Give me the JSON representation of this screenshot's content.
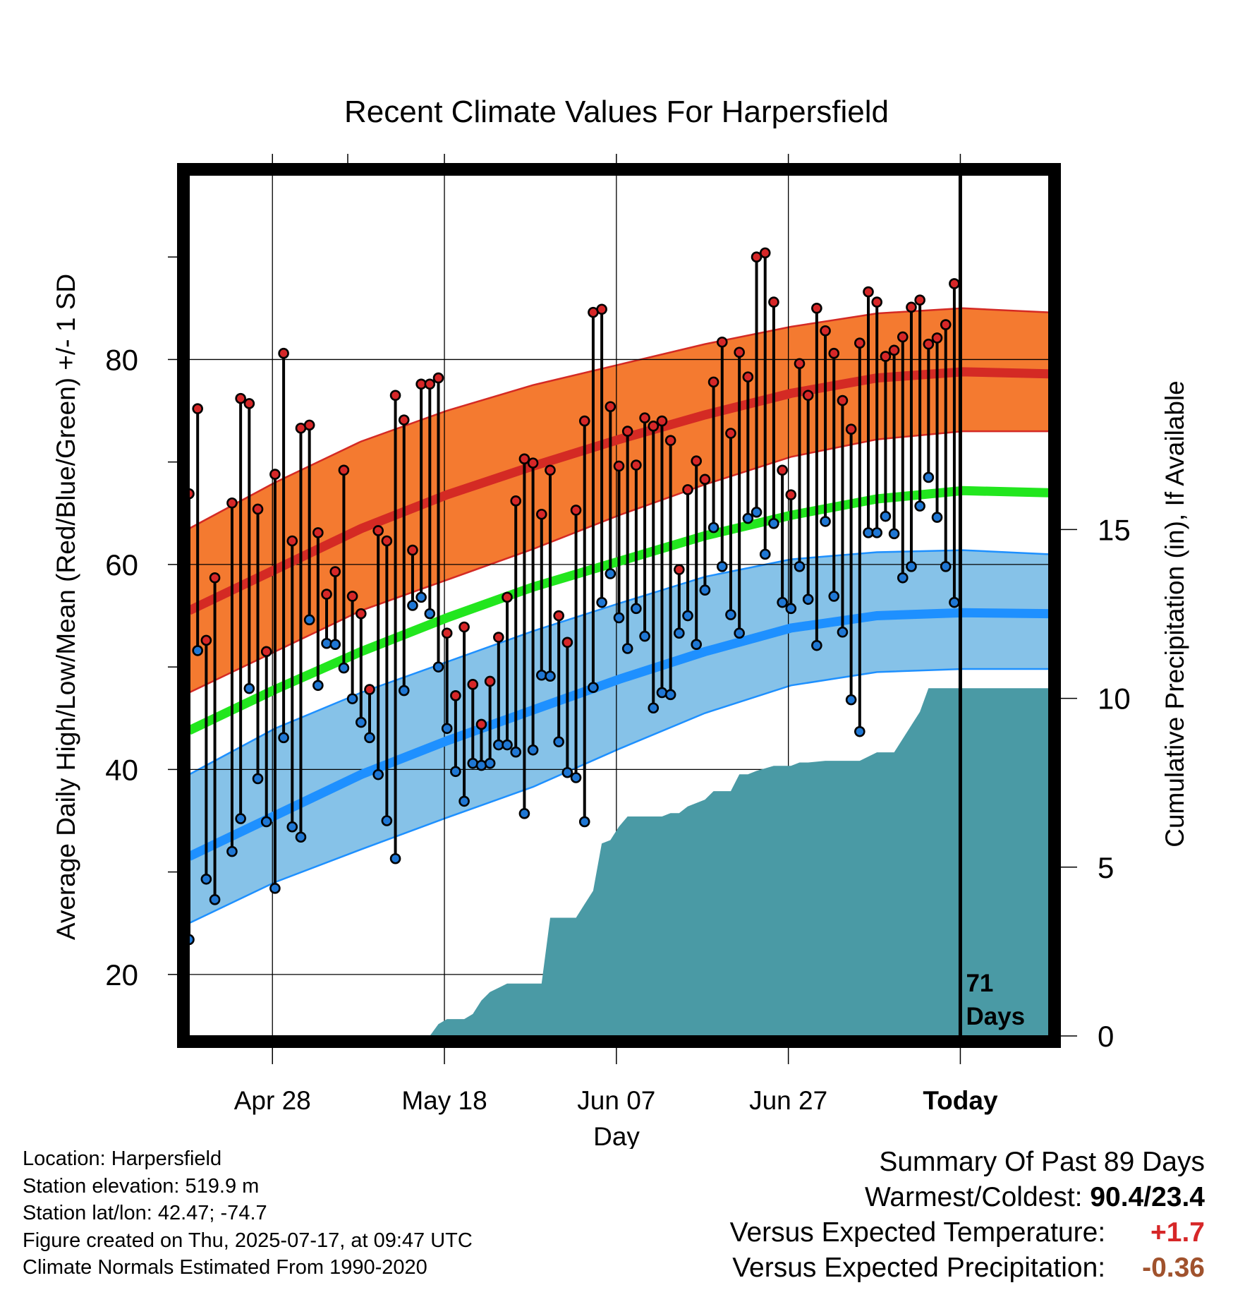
{
  "chart_data": {
    "type": "line",
    "title": "Recent Climate Values For Harpersfield",
    "xlabel": "Day",
    "ylabel": "Average Daily High/Low/Mean (Red/Blue/Green) +/- 1 SD",
    "y2label": "Cumulative Precipitation (in), If Available",
    "ylim": [
      14,
      98
    ],
    "y_ticks": [
      "20",
      "40",
      "60",
      "80"
    ],
    "y2lim": [
      0,
      25.5
    ],
    "y2_ticks": [
      "0",
      "5",
      "10",
      "15"
    ],
    "x_ticks": [
      "Apr 28",
      "May 18",
      "Jun 07",
      "Jun 27",
      "Today"
    ],
    "grid": true,
    "today_marker_label": "71 Days",
    "colors": {
      "high_band": "#f47a30",
      "high_line": "#d42a24",
      "low_band": "#86c2e8",
      "low_line": "#1e90ff",
      "mean_line": "#22e61e",
      "high_point": "#d62728",
      "low_point": "#1f77d4",
      "precip": "#4a9aa5"
    },
    "normals": {
      "x": [
        -90,
        -80,
        -70,
        -60,
        -50,
        -40,
        -30,
        -20,
        -10,
        0,
        10
      ],
      "high_mean": [
        55.5,
        59.5,
        63.5,
        66.8,
        69.6,
        72.2,
        74.6,
        76.7,
        78.2,
        78.8,
        78.6
      ],
      "high_sd_upper": [
        63.5,
        68.0,
        72.0,
        75.0,
        77.5,
        79.5,
        81.5,
        83.2,
        84.5,
        85.0,
        84.6
      ],
      "high_sd_lower": [
        47.5,
        51.5,
        55.5,
        58.5,
        61.5,
        64.8,
        67.8,
        70.5,
        72.2,
        73.0,
        73.0
      ],
      "mean": [
        43.8,
        47.8,
        51.5,
        54.8,
        57.8,
        60.3,
        62.8,
        64.8,
        66.4,
        67.2,
        67.0
      ],
      "low_mean": [
        31.5,
        35.5,
        39.5,
        42.8,
        45.8,
        48.8,
        51.5,
        53.8,
        55.0,
        55.3,
        55.2
      ],
      "low_sd_upper": [
        39.5,
        44.0,
        47.5,
        50.5,
        53.5,
        56.2,
        58.8,
        60.5,
        61.2,
        61.4,
        61.0
      ],
      "low_sd_lower": [
        25.0,
        29.0,
        32.2,
        35.3,
        38.3,
        42.0,
        45.5,
        48.2,
        49.5,
        49.8,
        49.8
      ]
    },
    "daily": {
      "x": [
        -90,
        -89,
        -88,
        -87,
        -86,
        -85,
        -84,
        -83,
        -82,
        -81,
        -80,
        -79,
        -78,
        -77,
        -76,
        -75,
        -74,
        -73,
        -72,
        -71,
        -70,
        -69,
        -68,
        -67,
        -66,
        -65,
        -64,
        -63,
        -62,
        -61,
        -60,
        -59,
        -58,
        -57,
        -56,
        -55,
        -54,
        -53,
        -52,
        -51,
        -50,
        -49,
        -48,
        -47,
        -46,
        -45,
        -44,
        -43,
        -42,
        -41,
        -40,
        -39,
        -38,
        -37,
        -36,
        -35,
        -34,
        -33,
        -32,
        -31,
        -30,
        -29,
        -28,
        -27,
        -26,
        -25,
        -24,
        -23,
        -22,
        -21,
        -20,
        -19,
        -18,
        -17,
        -16,
        -15,
        -14,
        -13,
        -12,
        -11,
        -10,
        -9,
        -8,
        -7,
        -6,
        -5,
        -4,
        -3,
        -2,
        -1
      ],
      "high": [
        66.9,
        75.2,
        52.6,
        58.7,
        null,
        66.0,
        76.2,
        75.7,
        65.4,
        51.5,
        68.8,
        80.6,
        62.3,
        73.3,
        73.6,
        63.1,
        57.1,
        59.3,
        69.2,
        56.9,
        55.2,
        47.8,
        63.3,
        62.3,
        76.5,
        74.1,
        61.4,
        77.6,
        77.6,
        78.2,
        53.3,
        47.2,
        53.9,
        48.3,
        44.4,
        48.6,
        52.9,
        56.8,
        66.2,
        70.3,
        69.9,
        64.9,
        69.2,
        55.0,
        52.4,
        65.3,
        74.0,
        84.6,
        84.9,
        75.4,
        69.6,
        73.0,
        69.7,
        74.3,
        73.5,
        74.0,
        72.1,
        59.5,
        67.3,
        70.1,
        68.3,
        77.8,
        81.7,
        72.8,
        80.7,
        78.3,
        90.0,
        90.4,
        85.6,
        69.2,
        66.8,
        79.6,
        76.5,
        85.0,
        82.8,
        80.6,
        76.0,
        73.2,
        81.6,
        86.6,
        85.6,
        80.3,
        80.9,
        82.2,
        85.1,
        85.8,
        81.5,
        82.1,
        83.4,
        87.4
      ],
      "low": [
        23.4,
        51.6,
        29.3,
        27.3,
        null,
        32.0,
        35.2,
        47.9,
        39.1,
        34.9,
        28.4,
        43.1,
        34.4,
        33.4,
        54.6,
        48.2,
        52.3,
        52.2,
        49.9,
        46.9,
        44.6,
        43.1,
        39.5,
        35.0,
        31.3,
        47.7,
        56.0,
        56.8,
        55.2,
        50.0,
        44.0,
        39.8,
        36.9,
        40.6,
        40.4,
        40.6,
        42.4,
        42.4,
        41.7,
        35.7,
        41.9,
        49.2,
        49.1,
        42.7,
        39.7,
        39.2,
        34.9,
        48.0,
        56.3,
        59.1,
        54.8,
        51.8,
        55.7,
        53.0,
        46.0,
        47.5,
        47.3,
        53.3,
        55.0,
        52.2,
        57.5,
        63.6,
        59.8,
        55.1,
        53.3,
        64.5,
        65.1,
        61.0,
        64.0,
        56.3,
        55.7,
        59.8,
        56.6,
        52.1,
        64.2,
        56.9,
        53.4,
        46.8,
        43.7,
        63.1,
        63.1,
        64.7,
        63.0,
        58.7,
        59.8,
        65.7,
        68.5,
        64.6,
        59.8,
        56.3
      ]
    },
    "precipitation": {
      "x": [
        -62,
        -61,
        -60,
        -58,
        -57,
        -56,
        -55,
        -53,
        -52,
        -51,
        -50,
        -49,
        -48,
        -47,
        -46,
        -45,
        -44,
        -43,
        -42,
        -41,
        -40,
        -39,
        -37,
        -36,
        -35,
        -34,
        -33,
        -32,
        -30,
        -29,
        -28,
        -27,
        -26,
        -25,
        -24,
        -22,
        -20,
        -19,
        -18,
        -16,
        -14,
        -12,
        -10,
        -8,
        -6,
        -5,
        -4,
        -3,
        -2,
        -1,
        0
      ],
      "cumulative": [
        0.0,
        0.35,
        0.5,
        0.5,
        0.65,
        1.05,
        1.3,
        1.55,
        1.55,
        1.55,
        1.55,
        1.55,
        3.5,
        3.5,
        3.5,
        3.5,
        3.9,
        4.3,
        5.7,
        5.8,
        6.2,
        6.5,
        6.5,
        6.5,
        6.5,
        6.6,
        6.6,
        6.8,
        7.0,
        7.25,
        7.25,
        7.25,
        7.75,
        7.75,
        7.85,
        8.0,
        8.0,
        8.1,
        8.1,
        8.15,
        8.15,
        8.15,
        8.4,
        8.4,
        9.2,
        9.6,
        10.3,
        10.3,
        10.3,
        10.3,
        10.3
      ]
    }
  },
  "info": {
    "location": "Location: Harpersfield",
    "elevation": "Station elevation: 519.9 m",
    "latlon": "Station lat/lon: 42.47; -74.7",
    "created": "Figure created on Thu, 2025-07-17, at 09:47 UTC",
    "normals": "Climate Normals Estimated From 1990-2020"
  },
  "summary": {
    "title": "Summary Of Past 89 Days",
    "warmest_label": "Warmest/Coldest:",
    "warmest_value": "90.4/23.4",
    "temp_label": "Versus Expected Temperature:",
    "temp_value": "+1.7",
    "precip_label": "Versus Expected Precipitation:",
    "precip_value": "-0.36"
  }
}
